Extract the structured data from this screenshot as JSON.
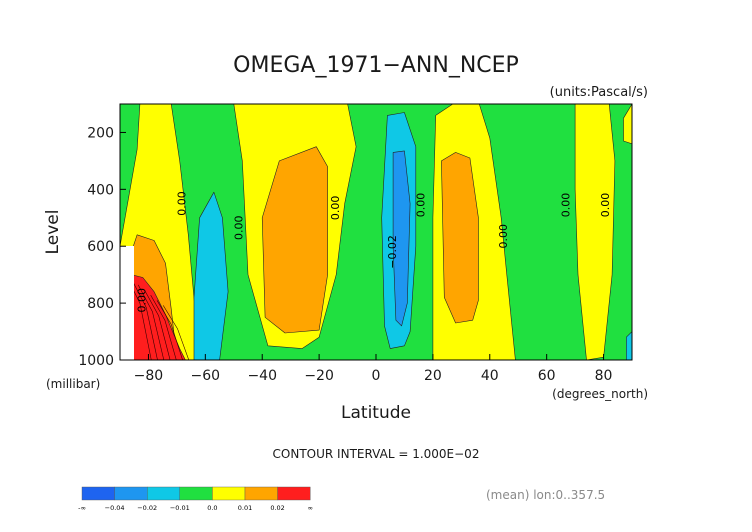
{
  "chart_data": {
    "type": "heatmap",
    "title": "OMEGA_1971−ANN_NCEP",
    "units_label": "(units:Pascal/s)",
    "xlabel": "Latitude",
    "ylabel": "Level",
    "x_unit_label": "(degrees_north)",
    "y_unit_label": "(millibar)",
    "xlim": [
      -90,
      90
    ],
    "ylim": [
      100,
      1000
    ],
    "y_inverted": true,
    "x_ticks": [
      -80,
      -60,
      -40,
      -20,
      0,
      20,
      40,
      60,
      80
    ],
    "x_tick_labels": [
      "−80",
      "−60",
      "−40",
      "−20",
      "0",
      "20",
      "40",
      "60",
      "80"
    ],
    "y_ticks": [
      200,
      400,
      600,
      800,
      1000
    ],
    "y_tick_labels": [
      "200",
      "400",
      "600",
      "800",
      "1000"
    ],
    "contour_interval_text": "CONTOUR INTERVAL = 1.000E−02",
    "mean_text": "(mean) lon:0..357.5",
    "colorbar": {
      "colors": [
        "#1e64f0",
        "#1e96f0",
        "#0fc8e6",
        "#20e040",
        "#ffff00",
        "#ffa500",
        "#ff1e1e"
      ],
      "labels": [
        "-∞",
        "−0.04",
        "−0.02",
        "−0.01",
        "0.0",
        "0.01",
        "0.02",
        "∞"
      ]
    },
    "contour_labels": [
      {
        "text": "0.00",
        "x": -67,
        "y": 450
      },
      {
        "text": "0.00",
        "x": -47,
        "y": 535
      },
      {
        "text": "0.00",
        "x": -13,
        "y": 465
      },
      {
        "text": "−0.02",
        "x": 7,
        "y": 620
      },
      {
        "text": "0.00",
        "x": 17,
        "y": 455
      },
      {
        "text": "0.00",
        "x": 46,
        "y": 565
      },
      {
        "text": "0.00",
        "x": 68,
        "y": 455
      },
      {
        "text": "0.00",
        "x": 82,
        "y": 455
      },
      {
        "text": "0.00",
        "x": -81,
        "y": 790
      }
    ],
    "regions": [
      {
        "level": "0.0",
        "color": "#ffff00",
        "pts": [
          [
            -83,
            100
          ],
          [
            -72,
            100
          ],
          [
            -69,
            300
          ],
          [
            -66,
            560
          ],
          [
            -62,
            1000
          ],
          [
            -84,
            1000
          ],
          [
            -90,
            860
          ],
          [
            -90,
            600
          ],
          [
            -84,
            260
          ]
        ]
      },
      {
        "level": "0.01",
        "color": "#ffa500",
        "pts": [
          [
            -84,
            560
          ],
          [
            -78,
            580
          ],
          [
            -74,
            660
          ],
          [
            -72,
            820
          ],
          [
            -70,
            1000
          ],
          [
            -84,
            1000
          ],
          [
            -88,
            860
          ],
          [
            -88,
            680
          ]
        ]
      },
      {
        "level": "0.02",
        "color": "#ff1e1e",
        "pts": [
          [
            -90,
            690
          ],
          [
            -82,
            710
          ],
          [
            -78,
            760
          ],
          [
            -74,
            840
          ],
          [
            -69,
            960
          ],
          [
            -67,
            1000
          ],
          [
            -90,
            1000
          ]
        ]
      },
      {
        "level": "0.0",
        "color": "#ffff00",
        "pts": [
          [
            -50,
            100
          ],
          [
            -10,
            100
          ],
          [
            -7,
            250
          ],
          [
            -11,
            450
          ],
          [
            -14,
            700
          ],
          [
            -20,
            920
          ],
          [
            -26,
            960
          ],
          [
            -38,
            950
          ],
          [
            -45,
            700
          ],
          [
            -47,
            300
          ]
        ]
      },
      {
        "level": "0.01",
        "color": "#ffa500",
        "pts": [
          [
            -34,
            300
          ],
          [
            -21,
            250
          ],
          [
            -17,
            320
          ],
          [
            -17,
            700
          ],
          [
            -20,
            895
          ],
          [
            -32,
            905
          ],
          [
            -39,
            850
          ],
          [
            -40,
            500
          ]
        ]
      },
      {
        "level": "−0.01",
        "color": "#0fc8e6",
        "pts": [
          [
            -62,
            500
          ],
          [
            -57,
            410
          ],
          [
            -54,
            500
          ],
          [
            -52,
            760
          ],
          [
            -55,
            1000
          ],
          [
            -64,
            1000
          ],
          [
            -64,
            780
          ]
        ]
      },
      {
        "level": "−0.01",
        "color": "#0fc8e6",
        "pts": [
          [
            4,
            140
          ],
          [
            10,
            130
          ],
          [
            14,
            250
          ],
          [
            14,
            600
          ],
          [
            12,
            900
          ],
          [
            10,
            950
          ],
          [
            5,
            960
          ],
          [
            3,
            880
          ],
          [
            2,
            500
          ]
        ]
      },
      {
        "level": "−0.02",
        "color": "#1e96f0",
        "pts": [
          [
            6,
            270
          ],
          [
            10,
            265
          ],
          [
            12,
            450
          ],
          [
            11,
            800
          ],
          [
            9,
            880
          ],
          [
            7,
            860
          ],
          [
            6,
            600
          ]
        ]
      },
      {
        "level": "0.0",
        "color": "#ffff00",
        "pts": [
          [
            21,
            140
          ],
          [
            27,
            100
          ],
          [
            36,
            90
          ],
          [
            40,
            220
          ],
          [
            44,
            500
          ],
          [
            46,
            700
          ],
          [
            49,
            1000
          ],
          [
            20,
            1000
          ],
          [
            20,
            500
          ]
        ]
      },
      {
        "level": "0.01",
        "color": "#ffa500",
        "pts": [
          [
            23,
            300
          ],
          [
            28,
            270
          ],
          [
            33,
            290
          ],
          [
            36,
            500
          ],
          [
            36,
            790
          ],
          [
            34,
            860
          ],
          [
            28,
            870
          ],
          [
            24,
            780
          ]
        ]
      },
      {
        "level": "0.0",
        "color": "#ffff00",
        "pts": [
          [
            70,
            100
          ],
          [
            82,
            100
          ],
          [
            84,
            300
          ],
          [
            83,
            700
          ],
          [
            80,
            990
          ],
          [
            74,
            1000
          ],
          [
            71,
            700
          ],
          [
            70,
            400
          ]
        ]
      },
      {
        "level": "0.0",
        "color": "#ffff00",
        "pts": [
          [
            87,
            150
          ],
          [
            90,
            100
          ],
          [
            90,
            240
          ],
          [
            87,
            230
          ]
        ]
      },
      {
        "level": "−0.01",
        "color": "#0fc8e6",
        "pts": [
          [
            88,
            920
          ],
          [
            90,
            900
          ],
          [
            90,
            1000
          ],
          [
            88,
            1000
          ]
        ]
      }
    ]
  }
}
